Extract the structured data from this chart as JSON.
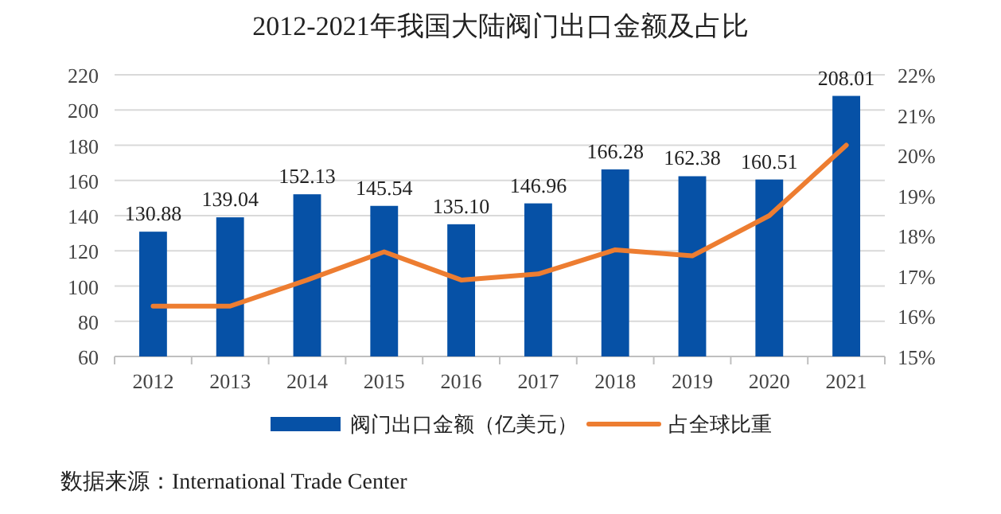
{
  "chart_data": {
    "type": "bar",
    "title": "2012-2021年我国大陆阀门出口金额及占比",
    "categories": [
      "2012",
      "2013",
      "2014",
      "2015",
      "2016",
      "2017",
      "2018",
      "2019",
      "2020",
      "2021"
    ],
    "series": [
      {
        "name": "阀门出口金额（亿美元）",
        "color": "#0651a6",
        "values": [
          130.88,
          139.04,
          152.13,
          145.54,
          135.1,
          146.96,
          166.28,
          162.38,
          160.51,
          208.01
        ],
        "value_labels": [
          "130.88",
          "139.04",
          "152.13",
          "145.54",
          "135.10",
          "146.96",
          "166.28",
          "162.38",
          "160.51",
          "208.01"
        ]
      },
      {
        "name": "占全球比重",
        "type": "line",
        "axis": "y2",
        "color": "#ed7d31",
        "values": [
          16.25,
          16.25,
          16.9,
          17.6,
          16.9,
          17.05,
          17.65,
          17.5,
          18.5,
          20.25
        ]
      }
    ],
    "ylim": [
      60,
      220
    ],
    "yticks": [
      60,
      80,
      100,
      120,
      140,
      160,
      180,
      200,
      220
    ],
    "y2lim": [
      15,
      22
    ],
    "y2ticks": [
      {
        "value": 15,
        "label": "15%"
      },
      {
        "value": 16,
        "label": "16%"
      },
      {
        "value": 17,
        "label": "17%"
      },
      {
        "value": 18,
        "label": "18%"
      },
      {
        "value": 19,
        "label": "19%"
      },
      {
        "value": 20,
        "label": "20%"
      },
      {
        "value": 21,
        "label": "21%"
      },
      {
        "value": 22,
        "label": "22%"
      }
    ],
    "grid": "y",
    "legend": "bottom",
    "marker": "none",
    "line_style": "solid",
    "annotations": [
      "数据来源：International Trade Center"
    ]
  }
}
